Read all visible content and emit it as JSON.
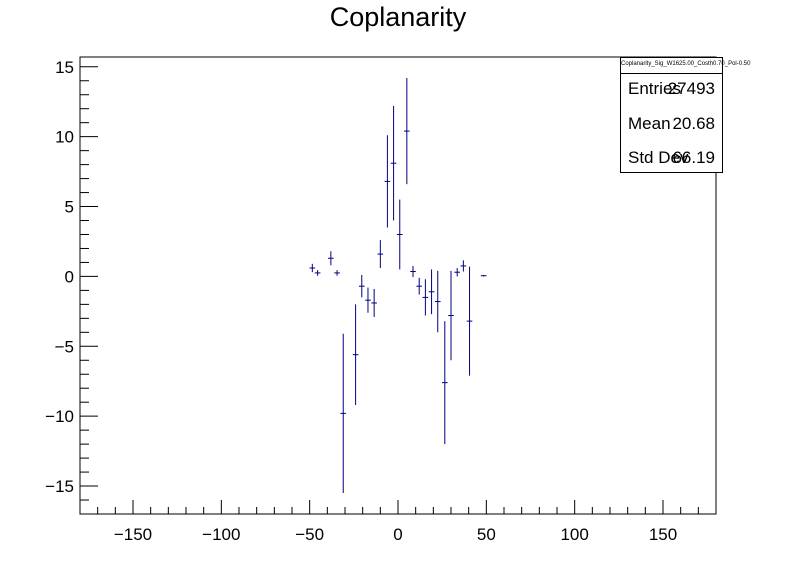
{
  "chart_data": {
    "type": "scatter",
    "title": "Coplanarity",
    "xlabel": "",
    "ylabel": "",
    "xlim": [
      -180,
      180
    ],
    "ylim": [
      -17,
      15.7
    ],
    "x_ticks": [
      -150,
      -100,
      -50,
      0,
      50,
      100,
      150
    ],
    "x_tick_labels": [
      "−150",
      "−100",
      "−50",
      "0",
      "50",
      "100",
      "150"
    ],
    "y_ticks": [
      -15,
      -10,
      -5,
      0,
      5,
      10,
      15
    ],
    "y_tick_labels": [
      "−15",
      "−10",
      "−5",
      "0",
      "5",
      "10",
      "15"
    ],
    "grid": false,
    "marker_color": "#000080",
    "series": [
      {
        "points": [
          {
            "x": -48.5,
            "y": 0.6,
            "err": 0.3
          },
          {
            "x": -45.5,
            "y": 0.25,
            "err": 0.2
          },
          {
            "x": -38,
            "y": 1.3,
            "err": 0.5
          },
          {
            "x": -34.5,
            "y": 0.25,
            "err": 0.2
          },
          {
            "x": -31,
            "y": -9.8,
            "err": 5.7
          },
          {
            "x": -24,
            "y": -5.6,
            "err": 3.6
          },
          {
            "x": -20.5,
            "y": -0.7,
            "err": 0.8
          },
          {
            "x": -17,
            "y": -1.7,
            "err": 0.9
          },
          {
            "x": -13.5,
            "y": -1.9,
            "err": 1.0
          },
          {
            "x": -10,
            "y": 1.6,
            "err": 1.0
          },
          {
            "x": -6,
            "y": 6.8,
            "err": 3.3
          },
          {
            "x": -2.5,
            "y": 8.1,
            "err": 4.1
          },
          {
            "x": 1,
            "y": 3.0,
            "err": 2.5
          },
          {
            "x": 5,
            "y": 10.4,
            "err": 3.8
          },
          {
            "x": 8.5,
            "y": 0.35,
            "err": 0.4
          },
          {
            "x": 12,
            "y": -0.7,
            "err": 0.6
          },
          {
            "x": 15.5,
            "y": -1.5,
            "err": 1.3
          },
          {
            "x": 19,
            "y": -1.1,
            "err": 1.6
          },
          {
            "x": 22.5,
            "y": -1.8,
            "err": 2.2
          },
          {
            "x": 26.5,
            "y": -7.6,
            "err": 4.4
          },
          {
            "x": 30,
            "y": -2.8,
            "err": 3.2
          },
          {
            "x": 33.5,
            "y": 0.3,
            "err": 0.3
          },
          {
            "x": 37,
            "y": 0.75,
            "err": 0.4
          },
          {
            "x": 40.5,
            "y": -3.2,
            "err": 3.9
          },
          {
            "x": 48.5,
            "y": 0.05,
            "err": 0.05
          }
        ]
      }
    ]
  },
  "stats": {
    "name": "Coplanarity_Sig_W1625.00_Costh0.70_Pol-0.50",
    "rows": [
      {
        "label": "Entries",
        "value": "27493"
      },
      {
        "label": "Mean",
        "value": "20.68"
      },
      {
        "label": "Std Dev",
        "value": "66.19"
      }
    ]
  }
}
